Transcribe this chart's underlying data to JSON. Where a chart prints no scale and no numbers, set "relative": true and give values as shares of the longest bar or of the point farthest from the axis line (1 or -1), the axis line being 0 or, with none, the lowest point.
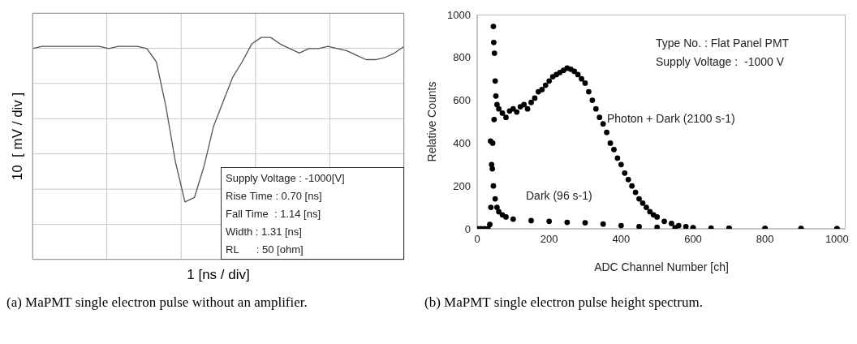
{
  "chart_data": [
    {
      "type": "line",
      "relative": true,
      "xlabel": "1  [ns / div]",
      "ylabel": "10  [ mV / div ]",
      "grid": true,
      "marker": "none",
      "line_style": "solid",
      "color": "#555555",
      "categories": [
        null,
        null,
        null,
        null,
        null,
        null,
        null,
        null,
        null,
        null,
        null,
        null,
        null,
        null,
        null,
        null,
        null,
        null,
        null,
        null,
        null,
        null,
        null,
        null,
        null,
        null,
        null,
        null,
        null,
        null,
        null,
        null,
        null,
        null,
        null,
        null,
        null,
        null,
        null,
        null
      ],
      "values": [
        0.95,
        0.96,
        0.96,
        0.96,
        0.96,
        0.96,
        0.96,
        0.96,
        0.95,
        0.96,
        0.96,
        0.96,
        0.95,
        0.89,
        0.69,
        0.44,
        0.26,
        0.28,
        0.42,
        0.6,
        0.71,
        0.82,
        0.89,
        0.97,
        1,
        1,
        0.97,
        0.95,
        0.93,
        0.95,
        0.95,
        0.96,
        0.95,
        0.94,
        0.92,
        0.9,
        0.9,
        0.91,
        0.93,
        0.96
      ],
      "annotations": [
        "Supply Voltage : -1000[V]",
        "Rise Time : 0.70 [ns]",
        "Fall Time  : 1.14 [ns]",
        "Width : 1.31 [ns]",
        "RL      : 50 [ohm]",
        "(a) MaPMT single electron pulse without an amplifier."
      ]
    },
    {
      "type": "scatter",
      "xlabel": "ADC Channel Number  [ch]",
      "ylabel": "Relative Counts",
      "xlim": [
        0,
        1024
      ],
      "ylim": [
        0,
        1000
      ],
      "xticks": [
        0,
        200,
        400,
        600,
        800,
        1000
      ],
      "yticks": [
        0,
        200,
        400,
        600,
        800,
        1000
      ],
      "grid": false,
      "legend": false,
      "marker": "circle",
      "series": [
        {
          "name": "Photon + Dark (2100 s-1)",
          "color": "#000000",
          "x": [
            45,
            46,
            47,
            48,
            50,
            52,
            55,
            60,
            70,
            80,
            90,
            100,
            110,
            120,
            130,
            140,
            150,
            160,
            170,
            180,
            190,
            200,
            210,
            220,
            230,
            240,
            250,
            260,
            270,
            280,
            290,
            300,
            310,
            320,
            330,
            340,
            350,
            360,
            370,
            380,
            390,
            400,
            410,
            420,
            430,
            440,
            450,
            460,
            470,
            480,
            490,
            500,
            520,
            540,
            560,
            580,
            600,
            650,
            700,
            800,
            900,
            1000
          ],
          "values": [
            945,
            870,
            510,
            820,
            690,
            620,
            580,
            560,
            540,
            520,
            550,
            560,
            545,
            570,
            580,
            560,
            590,
            610,
            640,
            650,
            670,
            690,
            710,
            720,
            730,
            740,
            750,
            745,
            735,
            720,
            700,
            680,
            640,
            600,
            560,
            520,
            490,
            450,
            400,
            370,
            330,
            300,
            260,
            230,
            200,
            170,
            140,
            120,
            100,
            80,
            65,
            55,
            35,
            25,
            15,
            10,
            5,
            3,
            2,
            1,
            1,
            0
          ]
        },
        {
          "name": "Dark (96 s-1)",
          "color": "#000000",
          "x": [
            0,
            10,
            20,
            30,
            35,
            37,
            38,
            40,
            42,
            43,
            45,
            50,
            55,
            60,
            70,
            80,
            100,
            150,
            200,
            250,
            300,
            350,
            400,
            450,
            500,
            550,
            600,
            700,
            800,
            900,
            1000
          ],
          "values": [
            0,
            0,
            0,
            0,
            20,
            410,
            100,
            300,
            280,
            400,
            200,
            140,
            100,
            80,
            65,
            55,
            45,
            38,
            35,
            30,
            28,
            22,
            15,
            10,
            7,
            5,
            3,
            2,
            1,
            0,
            0
          ]
        }
      ],
      "annotations": [
        "Type No. : Flat Panel PMT",
        "Supply Voltage :  -1000 V",
        "(b) MaPMT single electron pulse height spectrum."
      ]
    }
  ]
}
